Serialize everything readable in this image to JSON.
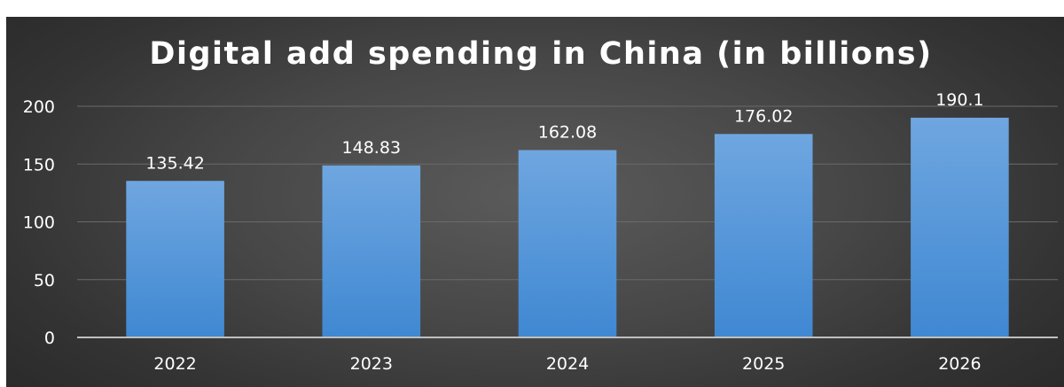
{
  "chart_data": {
    "type": "bar",
    "title": "Digital add spending in China (in billions)",
    "xlabel": "",
    "ylabel": "",
    "categories": [
      "2022",
      "2023",
      "2024",
      "2025",
      "2026"
    ],
    "values": [
      135.42,
      148.83,
      162.08,
      176.02,
      190.1
    ],
    "data_labels": [
      "135.42",
      "148.83",
      "162.08",
      "176.02",
      "190.1"
    ],
    "y_ticks": [
      0,
      50,
      100,
      150,
      200
    ],
    "ylim": [
      0,
      200
    ],
    "grid": true,
    "legend": "none",
    "colors": {
      "bar_top": "#6fa6e0",
      "bar_bottom": "#3f88d2",
      "background": "#444444",
      "grid": "#6a6a6a",
      "axis": "#bfbfbf",
      "text": "#ffffff"
    }
  }
}
